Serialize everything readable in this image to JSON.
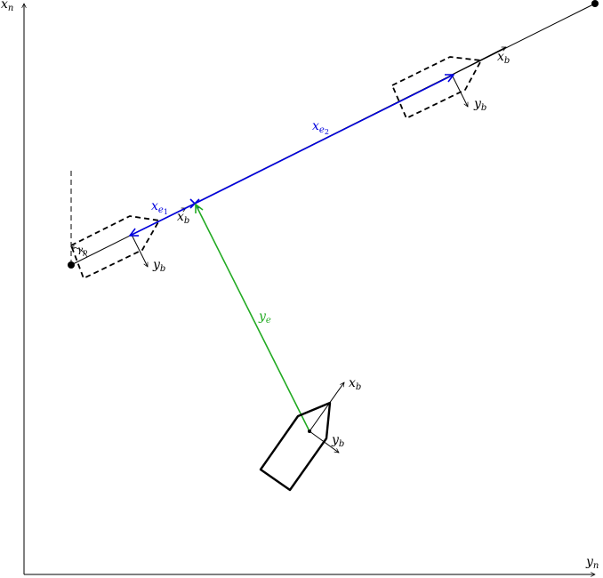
{
  "axes": {
    "vertical_main": "x",
    "vertical_sub": "n",
    "horizontal_main": "y",
    "horizontal_sub": "n"
  },
  "body_frame": {
    "x_main": "x",
    "y_main": "y",
    "sub": "b"
  },
  "errors": {
    "along_track_main": "x",
    "along_track_1_sub": "e",
    "along_track_1_subsub": "1",
    "along_track_2_sub": "e",
    "along_track_2_subsub": "2",
    "cross_track_main": "y",
    "cross_track_sub": "e"
  },
  "path_angle": {
    "main": "γ",
    "sub": "p"
  },
  "colors": {
    "along_track": "#0000dd",
    "cross_track": "#22aa22",
    "lines": "#000000"
  }
}
